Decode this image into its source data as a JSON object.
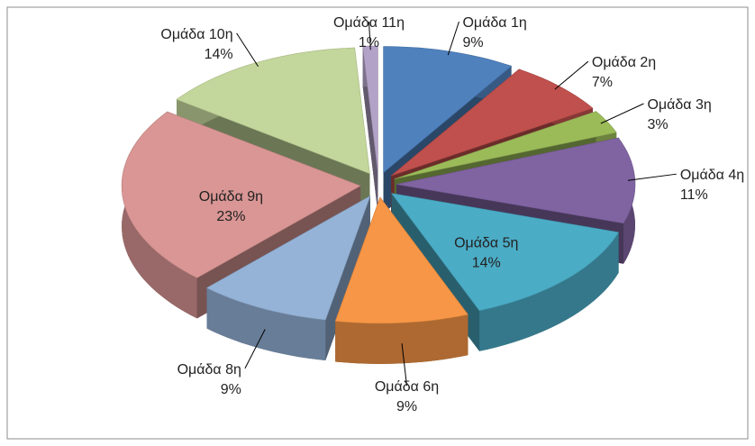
{
  "chart_data": {
    "type": "pie",
    "style": "3d-exploded",
    "categories": [
      "Ομάδα 1η",
      "Ομάδα 2η",
      "Ομάδα 3η",
      "Ομάδα 4η",
      "Ομάδα 5η",
      "Ομάδα 6η",
      "Ομάδα 8η",
      "Ομάδα 9η",
      "Ομάδα 10η",
      "Ομάδα 11η"
    ],
    "values": [
      9,
      7,
      3,
      11,
      14,
      9,
      9,
      23,
      14,
      1
    ],
    "value_labels": [
      "9%",
      "7%",
      "3%",
      "11%",
      "14%",
      "9%",
      "9%",
      "23%",
      "14%",
      "1%"
    ],
    "colors": [
      "#4f81bd",
      "#c0504d",
      "#9bbb59",
      "#8064a2",
      "#4bacc6",
      "#f79646",
      "#95b3d7",
      "#d99694",
      "#c3d69b",
      "#b3a2c7"
    ]
  }
}
